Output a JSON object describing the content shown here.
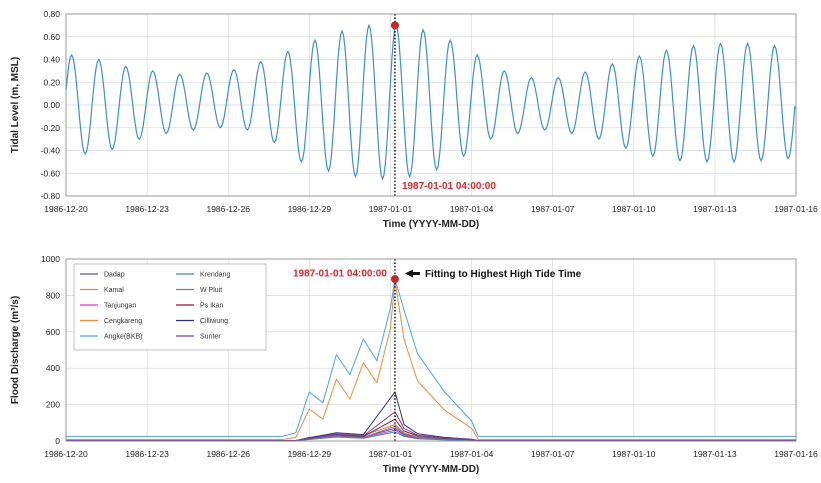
{
  "chart_data": [
    {
      "type": "line",
      "xlabel": "Time (YYYY-MM-DD)",
      "ylabel": "Tidal Level (m, MSL)",
      "xlim": [
        "1986-12-20",
        "1987-01-16"
      ],
      "ylim": [
        -0.8,
        0.8
      ],
      "x_ticks": [
        "1986-12-20",
        "1986-12-23",
        "1986-12-26",
        "1986-12-29",
        "1987-01-01",
        "1987-01-04",
        "1987-01-07",
        "1987-01-10",
        "1987-01-13",
        "1987-01-16"
      ],
      "y_ticks": [
        "-0.80",
        "-0.60",
        "-0.40",
        "-0.20",
        "0.00",
        "0.20",
        "0.40",
        "0.60",
        "0.80"
      ],
      "grid": true,
      "series": [
        {
          "color": "#3a8fd6",
          "period_days": 1.0,
          "first_high": "1986-12-20 05:00",
          "daily_high": [
            0.44,
            0.4,
            0.34,
            0.3,
            0.27,
            0.28,
            0.31,
            0.38,
            0.47,
            0.57,
            0.65,
            0.7,
            0.7,
            0.66,
            0.57,
            0.44,
            0.3,
            0.24,
            0.24,
            0.29,
            0.36,
            0.43,
            0.48,
            0.52,
            0.54,
            0.54,
            0.52,
            0.45
          ],
          "daily_low": [
            -0.43,
            -0.39,
            -0.3,
            -0.25,
            -0.22,
            -0.2,
            -0.22,
            -0.33,
            -0.5,
            -0.58,
            -0.63,
            -0.65,
            -0.63,
            -0.57,
            -0.45,
            -0.3,
            -0.25,
            -0.22,
            -0.25,
            -0.3,
            -0.38,
            -0.45,
            -0.49,
            -0.5,
            -0.5,
            -0.49,
            -0.47,
            -0.45
          ]
        }
      ],
      "marker": {
        "x": "1987-01-01 04:00",
        "y": 0.7,
        "color": "#c0282b"
      },
      "vline": {
        "x": "1987-01-01 04:00"
      },
      "annotations": [
        {
          "text": "1987-01-01 04:00:00",
          "x": "1987-01-01 04:00",
          "y": -0.72,
          "color": "#e0242b"
        }
      ]
    },
    {
      "type": "line",
      "xlabel": "Time (YYYY-MM-DD)",
      "ylabel": "Flood Discharge (m³/s)",
      "xlim": [
        "1986-12-20",
        "1987-01-16"
      ],
      "ylim": [
        0,
        1000
      ],
      "x_ticks": [
        "1986-12-20",
        "1986-12-23",
        "1986-12-26",
        "1986-12-29",
        "1987-01-01",
        "1987-01-04",
        "1987-01-07",
        "1987-01-10",
        "1987-01-13",
        "1987-01-16"
      ],
      "y_ticks": [
        "0",
        "200",
        "400",
        "600",
        "800",
        "1000"
      ],
      "grid": true,
      "legend": "top-left",
      "series": [
        {
          "name": "Dadap",
          "color": "#5b4fb8",
          "base": 3,
          "x": [
            "1986-12-28 12:00",
            "1986-12-29",
            "1986-12-30",
            "1986-12-31",
            "1987-01-01 04:00",
            "1987-01-01 12:00",
            "1987-01-02",
            "1987-01-03",
            "1987-01-04",
            "1987-01-04 06:00"
          ],
          "y": [
            3,
            12,
            30,
            22,
            70,
            35,
            18,
            10,
            5,
            3
          ]
        },
        {
          "name": "Kamal",
          "color": "#e87c5b",
          "base": 2,
          "x": [
            "1986-12-28 12:00",
            "1986-12-29",
            "1986-12-30",
            "1986-12-31",
            "1987-01-01 04:00",
            "1987-01-01 12:00",
            "1987-01-02",
            "1987-01-03",
            "1987-01-04",
            "1987-01-04 06:00"
          ],
          "y": [
            2,
            20,
            40,
            30,
            90,
            45,
            22,
            12,
            6,
            2
          ]
        },
        {
          "name": "Tanjungan",
          "color": "#d33fb8",
          "base": 2,
          "x": [
            "1986-12-28 12:00",
            "1986-12-29",
            "1986-12-30",
            "1986-12-31",
            "1987-01-01 04:00",
            "1987-01-01 12:00",
            "1987-01-02",
            "1987-01-03",
            "1987-01-04",
            "1987-01-04 06:00"
          ],
          "y": [
            2,
            10,
            25,
            18,
            60,
            30,
            15,
            8,
            4,
            2
          ]
        },
        {
          "name": "Cengkareng",
          "color": "#f08a3c",
          "base": 8,
          "x": [
            "1986-12-28",
            "1986-12-28 12:00",
            "1986-12-29",
            "1986-12-29 12:00",
            "1986-12-30",
            "1986-12-30 12:00",
            "1986-12-31",
            "1986-12-31 12:00",
            "1987-01-01",
            "1987-01-01 04:00",
            "1987-01-01 12:00",
            "1987-01-02",
            "1987-01-03",
            "1987-01-04",
            "1987-01-04 06:00"
          ],
          "y": [
            8,
            20,
            175,
            120,
            340,
            230,
            430,
            320,
            620,
            880,
            560,
            330,
            170,
            70,
            8
          ]
        },
        {
          "name": "Angke(BKB)",
          "color": "#4aa3e8",
          "base": 25,
          "x": [
            "1986-12-28",
            "1986-12-28 12:00",
            "1986-12-29",
            "1986-12-29 12:00",
            "1986-12-30",
            "1986-12-30 12:00",
            "1986-12-31",
            "1986-12-31 12:00",
            "1987-01-01",
            "1987-01-01 04:00",
            "1987-01-01 12:00",
            "1987-01-02",
            "1987-01-03",
            "1987-01-04",
            "1987-01-04 06:00"
          ],
          "y": [
            25,
            45,
            270,
            210,
            475,
            365,
            560,
            440,
            730,
            890,
            720,
            480,
            270,
            110,
            25
          ]
        },
        {
          "name": "Krendang",
          "color": "#3e7fb5",
          "base": 2,
          "x": [
            "1986-12-28 12:00",
            "1986-12-29",
            "1986-12-30",
            "1986-12-31",
            "1987-01-01 04:00",
            "1987-01-01 12:00",
            "1987-01-02",
            "1987-01-03",
            "1987-01-04",
            "1987-01-04 06:00"
          ],
          "y": [
            2,
            8,
            22,
            15,
            50,
            25,
            12,
            6,
            3,
            2
          ]
        },
        {
          "name": "W Pluit",
          "color": "#7a7f86",
          "base": 2,
          "x": [
            "1986-12-28 12:00",
            "1986-12-29",
            "1986-12-30",
            "1986-12-31",
            "1987-01-01 04:00",
            "1987-01-01 12:00",
            "1987-01-02",
            "1987-01-03",
            "1987-01-04",
            "1987-01-04 06:00"
          ],
          "y": [
            2,
            10,
            28,
            20,
            80,
            40,
            20,
            10,
            5,
            2
          ]
        },
        {
          "name": "Ps Ikan",
          "color": "#8b1f2e",
          "base": 2,
          "x": [
            "1986-12-28 12:00",
            "1986-12-29",
            "1986-12-30",
            "1986-12-31",
            "1987-01-01 04:00",
            "1987-01-01 12:00",
            "1987-01-02",
            "1987-01-03",
            "1987-01-04",
            "1987-01-04 06:00"
          ],
          "y": [
            2,
            15,
            35,
            25,
            120,
            55,
            28,
            14,
            7,
            2
          ]
        },
        {
          "name": "Cilliwung",
          "color": "#2b2f8c",
          "base": 2,
          "x": [
            "1986-12-28 12:00",
            "1986-12-29",
            "1986-12-30",
            "1986-12-31",
            "1987-01-01 04:00",
            "1987-01-01 12:00",
            "1987-01-02",
            "1987-01-03",
            "1987-01-04",
            "1987-01-04 06:00"
          ],
          "y": [
            2,
            18,
            45,
            35,
            270,
            90,
            40,
            20,
            10,
            2
          ]
        },
        {
          "name": "Sunter",
          "color": "#7b3fa8",
          "base": 2,
          "x": [
            "1986-12-28 12:00",
            "1986-12-29",
            "1986-12-30",
            "1986-12-31",
            "1987-01-01 04:00",
            "1987-01-01 12:00",
            "1987-01-02",
            "1987-01-03",
            "1987-01-04",
            "1987-01-04 06:00"
          ],
          "y": [
            2,
            14,
            38,
            28,
            160,
            70,
            32,
            16,
            8,
            2
          ]
        }
      ],
      "marker": {
        "x": "1987-01-01 04:00",
        "y": 890,
        "color": "#c0282b"
      },
      "vline": {
        "x": "1987-01-01 04:00"
      },
      "annotations": [
        {
          "text": "1987-01-01 04:00:00",
          "x": "1987-01-01 04:00",
          "y": 920,
          "color": "#e0242b"
        },
        {
          "text": "Fitting to Highest High Tide Time",
          "x": "1987-01-01 04:00",
          "y": 920,
          "color": "#111111",
          "arrow": true
        }
      ]
    }
  ]
}
